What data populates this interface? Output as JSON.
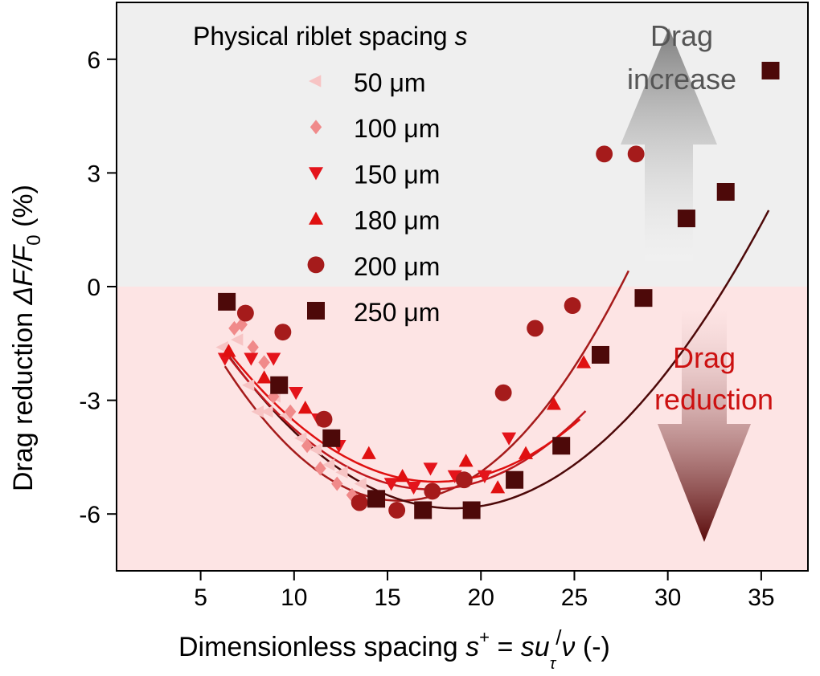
{
  "chart_data": {
    "type": "scatter",
    "xlabel": {
      "main": "Dimensionless spacing ",
      "s": "s",
      "plus": "+",
      "eq": " = ",
      "su": "su",
      "tau": "τ",
      "slash": "/",
      "nu": "ν",
      "unit": " (-)"
    },
    "ylabel": {
      "main": "Drag reduction ",
      "delta": "ΔF/F",
      "sub": "0",
      "unit": " (%)"
    },
    "xlim": [
      0.5,
      37.5
    ],
    "ylim": [
      -7.5,
      7.5
    ],
    "xticks": [
      5,
      10,
      15,
      20,
      25,
      30,
      35
    ],
    "yticks": [
      -6,
      -3,
      0,
      3,
      6
    ],
    "grid": false,
    "regions": [
      {
        "name": "increase",
        "y_from": 0,
        "y_to": 7.5,
        "color": "#efefef"
      },
      {
        "name": "reduction",
        "y_from": -7.5,
        "y_to": 0,
        "color": "#fde4e4"
      }
    ],
    "legend": {
      "title_main": "Physical riblet spacing ",
      "title_italic": "s",
      "placement": "top-left"
    },
    "series": [
      {
        "name": "50 μm",
        "marker": "triangle-left",
        "color": "#f7c4c4",
        "points": [
          [
            6.2,
            -1.6
          ],
          [
            7.0,
            -1.4
          ],
          [
            7.6,
            -2.6
          ],
          [
            8.1,
            -3.3
          ],
          [
            8.6,
            -3.3
          ],
          [
            9.0,
            -2.9
          ],
          [
            9.6,
            -3.4
          ],
          [
            10.4,
            -4.0
          ],
          [
            11.2,
            -4.3
          ],
          [
            11.9,
            -4.7
          ],
          [
            12.6,
            -4.9
          ],
          [
            13.6,
            -5.2
          ],
          [
            14.3,
            -5.5
          ]
        ]
      },
      {
        "name": "100 μm",
        "marker": "diamond",
        "color": "#f08a8a",
        "points": [
          [
            6.8,
            -1.1
          ],
          [
            7.2,
            -1.0
          ],
          [
            7.8,
            -1.6
          ],
          [
            8.4,
            -2.0
          ],
          [
            8.9,
            -2.9
          ],
          [
            9.8,
            -3.3
          ],
          [
            10.7,
            -4.2
          ],
          [
            11.4,
            -4.8
          ],
          [
            12.3,
            -5.2
          ],
          [
            13.1,
            -5.5
          ]
        ]
      },
      {
        "name": "150 μm",
        "marker": "triangle-down",
        "color": "#e4141b",
        "points": [
          [
            6.3,
            -1.9
          ],
          [
            7.7,
            -1.9
          ],
          [
            8.9,
            -1.9
          ],
          [
            10.1,
            -2.8
          ],
          [
            11.3,
            -3.5
          ],
          [
            12.4,
            -4.2
          ],
          [
            15.2,
            -5.2
          ],
          [
            16.4,
            -5.3
          ],
          [
            17.3,
            -4.8
          ],
          [
            18.6,
            -5.0
          ],
          [
            20.2,
            -5.0
          ],
          [
            21.5,
            -4.0
          ]
        ]
      },
      {
        "name": "180 μm",
        "marker": "triangle-up",
        "color": "#e01010",
        "points": [
          [
            6.5,
            -1.7
          ],
          [
            8.4,
            -2.4
          ],
          [
            10.6,
            -3.2
          ],
          [
            14.0,
            -4.4
          ],
          [
            15.8,
            -5.0
          ],
          [
            19.2,
            -4.6
          ],
          [
            20.9,
            -5.3
          ],
          [
            22.4,
            -4.4
          ],
          [
            23.9,
            -3.1
          ],
          [
            25.5,
            -2.0
          ]
        ]
      },
      {
        "name": "200 μm",
        "marker": "circle",
        "color": "#a51b1b",
        "points": [
          [
            7.4,
            -0.7
          ],
          [
            9.4,
            -1.2
          ],
          [
            11.6,
            -3.5
          ],
          [
            13.5,
            -5.7
          ],
          [
            15.5,
            -5.9
          ],
          [
            17.4,
            -5.4
          ],
          [
            19.1,
            -5.1
          ],
          [
            21.2,
            -2.8
          ],
          [
            22.9,
            -1.1
          ],
          [
            24.9,
            -0.5
          ],
          [
            26.6,
            3.5
          ],
          [
            28.3,
            3.5
          ]
        ]
      },
      {
        "name": "250 μm",
        "marker": "square",
        "color": "#4d0909",
        "points": [
          [
            6.4,
            -0.4
          ],
          [
            9.2,
            -2.6
          ],
          [
            12.0,
            -4.0
          ],
          [
            14.4,
            -5.6
          ],
          [
            16.9,
            -5.9
          ],
          [
            19.5,
            -5.9
          ],
          [
            21.8,
            -5.1
          ],
          [
            24.3,
            -4.2
          ],
          [
            26.4,
            -1.8
          ],
          [
            28.7,
            -0.3
          ],
          [
            31.0,
            1.8
          ],
          [
            33.1,
            2.5
          ],
          [
            35.5,
            5.7
          ]
        ]
      }
    ],
    "fits": [
      {
        "series": "200 μm",
        "color": "#a51b1b",
        "a": 0.0405,
        "h": 15.66,
        "k": -5.65,
        "x0": 6.3,
        "x1": 27.9
      },
      {
        "series": "250 μm",
        "color": "#4d0909",
        "a": 0.0277,
        "h": 18.55,
        "k": -5.85,
        "x0": 6.4,
        "x1": 35.4
      },
      {
        "series": "150 μm",
        "color": "#c0181e",
        "a": 0.03,
        "h": 17.3,
        "k": -5.35,
        "x0": 6.4,
        "x1": 25.6
      },
      {
        "series": "180 μm",
        "color": "#e01010",
        "a": 0.0278,
        "h": 17.6,
        "k": -5.15,
        "x0": 6.6,
        "x1": 25.3
      }
    ],
    "annotations": [
      {
        "lines": [
          "Drag",
          "increase"
        ],
        "color": "#555555",
        "arrow": "up"
      },
      {
        "lines": [
          "Drag",
          "reduction"
        ],
        "color": "#cc1111",
        "arrow": "down"
      }
    ]
  }
}
